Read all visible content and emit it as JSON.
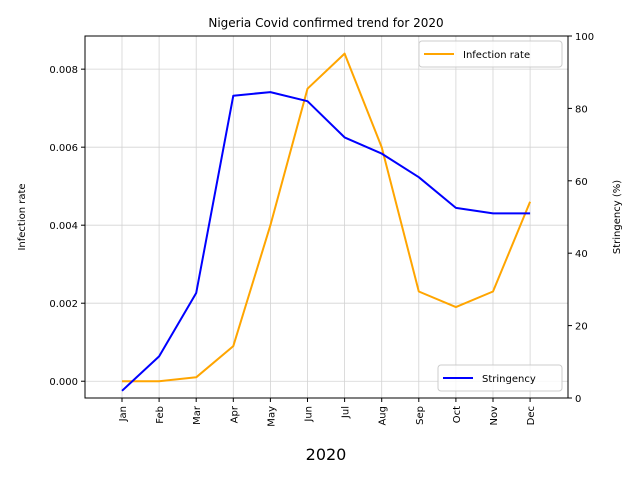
{
  "chart_data": {
    "type": "line",
    "title": "Nigeria Covid confirmed trend for 2020",
    "xlabel": "2020",
    "ylabel_left": "Infection rate",
    "ylabel_right": "Stringency (%)",
    "categories": [
      "Jan",
      "Feb",
      "Mar",
      "Apr",
      "May",
      "Jun",
      "Jul",
      "Aug",
      "Sep",
      "Oct",
      "Nov",
      "Dec"
    ],
    "ylim_left": [
      -0.00043,
      0.00885
    ],
    "ylim_right": [
      0,
      100
    ],
    "yticks_left": [
      "0.000",
      "0.002",
      "0.004",
      "0.006",
      "0.008"
    ],
    "yticks_left_values": [
      0,
      0.002,
      0.004,
      0.006,
      0.008
    ],
    "yticks_right": [
      "0",
      "20",
      "40",
      "60",
      "80",
      "100"
    ],
    "yticks_right_values": [
      0,
      20,
      40,
      60,
      80,
      100
    ],
    "grid": true,
    "series": [
      {
        "name": "Infection rate",
        "axis": "left",
        "color": "#ffa500",
        "legend_position": "upper right",
        "values": [
          0.0,
          0.0,
          0.0001,
          0.0009,
          0.004,
          0.0075,
          0.0084,
          0.006,
          0.0023,
          0.0019,
          0.0023,
          0.0046
        ]
      },
      {
        "name": "Stringency",
        "axis": "right",
        "color": "#0000ff",
        "legend_position": "lower right",
        "values": [
          2,
          11.5,
          29,
          83.5,
          84.5,
          82,
          72,
          67.5,
          61,
          52.5,
          51,
          51
        ]
      }
    ]
  }
}
